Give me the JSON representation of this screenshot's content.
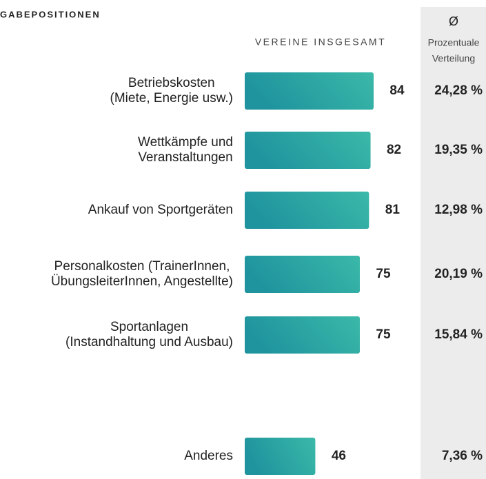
{
  "chart_data": {
    "type": "bar",
    "title": "GABEPOSITIONEN",
    "column_title": "VEREINE INSGESAMT",
    "share_header": {
      "symbol": "Ø",
      "lines": [
        "Prozentuale",
        "Verteilung"
      ]
    },
    "categories": [
      [
        "Betriebskosten",
        "(Miete, Energie usw.)"
      ],
      [
        "Wettkämpfe und",
        "Veranstaltungen"
      ],
      [
        "Ankauf von Sportgeräten"
      ],
      [
        "Personalkosten (TrainerInnen,",
        "ÜbungsleiterInnen, Angestellte)"
      ],
      [
        "Sportanlagen",
        "(Instandhaltung und Ausbau)"
      ],
      [
        "Anderes"
      ]
    ],
    "values": [
      84,
      82,
      81,
      75,
      75,
      46
    ],
    "shares": {
      "values": [
        24.28,
        19.35,
        12.98,
        20.19,
        15.84,
        7.36
      ],
      "value_labels": [
        "24,28 %",
        "19,35 %",
        "12,98 %",
        "20,19 %",
        "15,84 %",
        "7,36 %"
      ]
    },
    "color": [
      "#1f949e",
      "#3bb9a8"
    ]
  }
}
